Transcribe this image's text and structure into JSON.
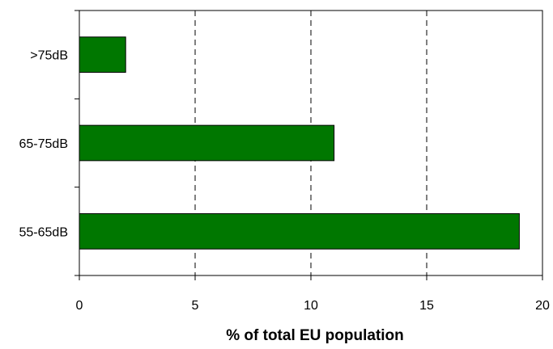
{
  "chart_data": {
    "type": "bar",
    "orientation": "horizontal",
    "categories": [
      ">75dB",
      "65-75dB",
      "55-65dB"
    ],
    "values": [
      2,
      11,
      19
    ],
    "xlabel": "% of total EU population",
    "ylabel": "",
    "xlim": [
      0,
      20
    ],
    "xticks": [
      "0",
      "5",
      "10",
      "15",
      "20"
    ],
    "grid": "vertical-dashed",
    "bar_color": "#007700",
    "legend": "none"
  }
}
